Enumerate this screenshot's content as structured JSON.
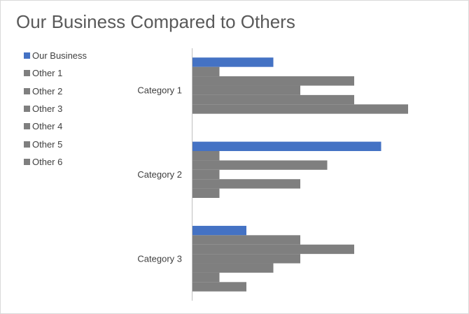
{
  "chart_data": {
    "type": "bar",
    "orientation": "horizontal",
    "title": "Our Business Compared to Others",
    "categories": [
      "Category 1",
      "Category 2",
      "Category 3"
    ],
    "series": [
      {
        "name": "Our Business",
        "color": "#4472c4",
        "values": [
          3,
          7,
          2
        ]
      },
      {
        "name": "Other 1",
        "color": "#7f7f7f",
        "values": [
          1,
          1,
          4
        ]
      },
      {
        "name": "Other 2",
        "color": "#7f7f7f",
        "values": [
          6,
          5,
          6
        ]
      },
      {
        "name": "Other 3",
        "color": "#7f7f7f",
        "values": [
          4,
          1,
          4
        ]
      },
      {
        "name": "Other 4",
        "color": "#7f7f7f",
        "values": [
          6,
          4,
          3
        ]
      },
      {
        "name": "Other 5",
        "color": "#7f7f7f",
        "values": [
          8,
          1,
          1
        ]
      },
      {
        "name": "Other 6",
        "color": "#7f7f7f",
        "values": [
          0,
          0,
          2
        ]
      }
    ],
    "xlim": [
      0,
      10
    ],
    "x_axis_visible": false,
    "grid": false,
    "legend_position": "left"
  }
}
